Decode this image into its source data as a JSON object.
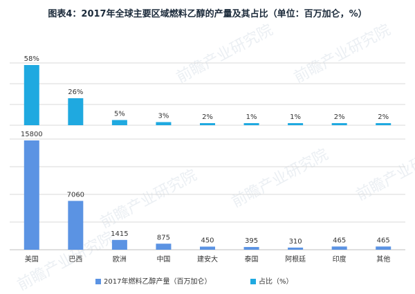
{
  "title": "图表4：2017年全球主要区域燃料乙醇的产量及其占比（单位：百万加仑，%）",
  "watermark": "前瞻产业研究院",
  "colors": {
    "production": "#5b93e3",
    "share": "#1fa9e0",
    "grid": "#d9d9d9"
  },
  "chart_data": [
    {
      "type": "bar",
      "categories": [
        "美国",
        "巴西",
        "欧洲",
        "中国",
        "建安大",
        "泰国",
        "阿根廷",
        "印度",
        "其他"
      ],
      "series": [
        {
          "name": "占比（%）",
          "values": [
            58,
            26,
            5,
            3,
            2,
            1,
            1,
            2,
            2
          ]
        }
      ],
      "data_labels": [
        "58%",
        "26%",
        "5%",
        "3%",
        "2%",
        "1%",
        "1%",
        "2%",
        "2%"
      ],
      "grid": true
    },
    {
      "type": "bar",
      "categories": [
        "美国",
        "巴西",
        "欧洲",
        "中国",
        "建安大",
        "泰国",
        "阿根廷",
        "印度",
        "其他"
      ],
      "series": [
        {
          "name": "2017年燃料乙醇产量（百万加仑）",
          "values": [
            15800,
            7060,
            1415,
            875,
            450,
            395,
            310,
            465,
            465
          ]
        }
      ],
      "data_labels": [
        "15800",
        "7060",
        "1415",
        "875",
        "450",
        "395",
        "310",
        "465",
        "465"
      ],
      "grid": true
    }
  ],
  "legend": [
    {
      "label": "2017年燃料乙醇产量（百万加仑）",
      "series": "production"
    },
    {
      "label": "占比（%）",
      "series": "share"
    }
  ]
}
